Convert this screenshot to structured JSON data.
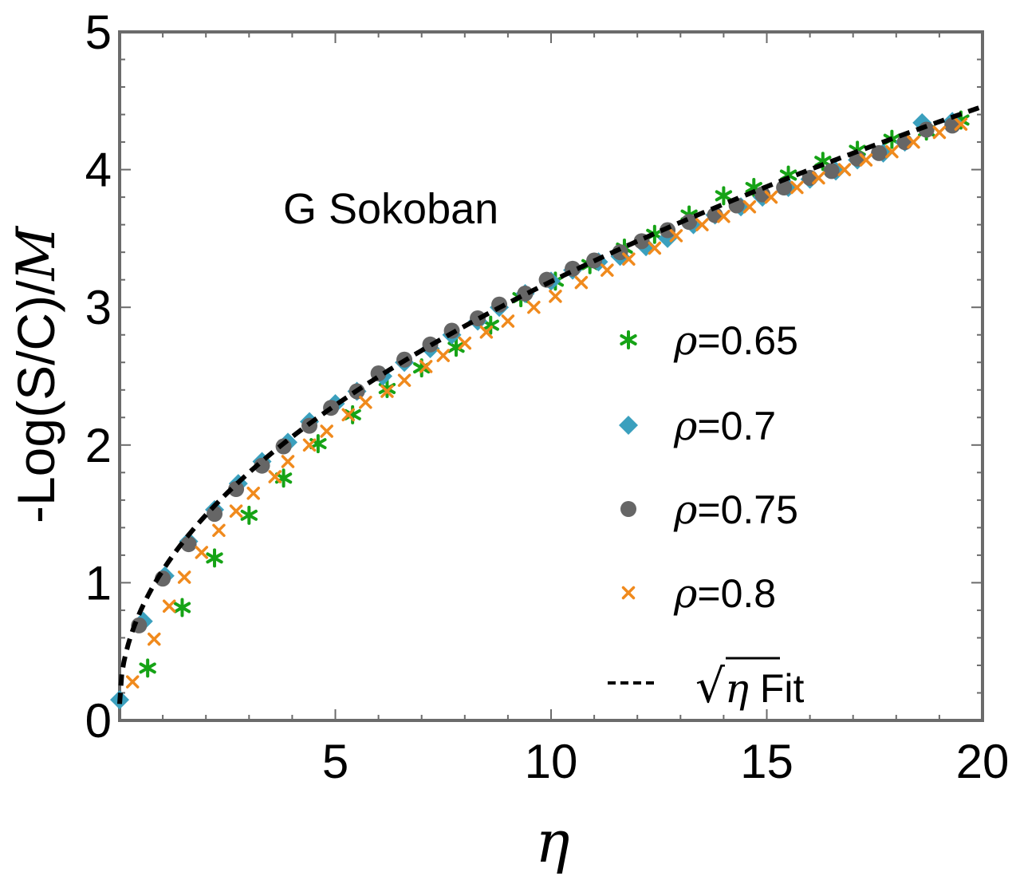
{
  "chart_data": {
    "type": "scatter",
    "title": "",
    "annotation": "G Sokoban",
    "xlabel": "η",
    "ylabel": "-Log(S/C)/M",
    "ylabel_prefix": "-Log(S/C)/",
    "ylabel_symbol": "M",
    "xlim": [
      0,
      20
    ],
    "ylim": [
      0,
      5
    ],
    "xticks": [
      5,
      10,
      15,
      20
    ],
    "yticks": [
      0,
      1,
      2,
      3,
      4,
      5
    ],
    "xtick_labels": [
      "5",
      "10",
      "15",
      "20"
    ],
    "ytick_labels": [
      "0",
      "1",
      "2",
      "3",
      "4",
      "5"
    ],
    "legend_position": "right",
    "series": [
      {
        "name": "ρ=0.65",
        "rho_symbol": "ρ",
        "rho_value": "=0.65",
        "marker": "star",
        "color": "#16a316",
        "x": [
          0.65,
          1.45,
          2.2,
          3.0,
          3.8,
          4.6,
          5.4,
          6.2,
          7.0,
          7.8,
          8.6,
          9.3,
          10.1,
          10.9,
          11.7,
          12.4,
          13.2,
          14.0,
          14.7,
          15.5,
          16.3,
          17.1,
          17.9,
          18.7,
          19.5
        ],
        "y": [
          0.38,
          0.82,
          1.18,
          1.49,
          1.76,
          2.01,
          2.22,
          2.41,
          2.56,
          2.71,
          2.87,
          3.07,
          3.19,
          3.31,
          3.43,
          3.53,
          3.67,
          3.81,
          3.87,
          3.96,
          4.06,
          4.14,
          4.22,
          4.28,
          4.36
        ]
      },
      {
        "name": "ρ=0.7",
        "rho_symbol": "ρ",
        "rho_value": "=0.7",
        "marker": "diamond",
        "color": "#3ba0be",
        "x": [
          0.0,
          0.55,
          1.05,
          1.6,
          2.2,
          2.75,
          3.3,
          3.9,
          4.4,
          5.0,
          5.5,
          6.1,
          6.6,
          7.2,
          7.7,
          8.3,
          8.8,
          9.4,
          10.0,
          10.5,
          11.1,
          11.6,
          12.2,
          12.7,
          13.3,
          13.8,
          14.4,
          14.9,
          15.5,
          16.0,
          16.6,
          17.1,
          17.7,
          18.2,
          18.6,
          19.3
        ],
        "y": [
          0.15,
          0.72,
          1.05,
          1.3,
          1.53,
          1.72,
          1.88,
          2.02,
          2.17,
          2.3,
          2.39,
          2.5,
          2.6,
          2.7,
          2.8,
          2.9,
          3.0,
          3.1,
          3.19,
          3.27,
          3.33,
          3.37,
          3.44,
          3.5,
          3.6,
          3.67,
          3.73,
          3.8,
          3.87,
          3.93,
          3.99,
          4.07,
          4.12,
          4.2,
          4.34,
          4.35
        ]
      },
      {
        "name": "ρ=0.75",
        "rho_symbol": "ρ",
        "rho_value": "=0.75",
        "marker": "circle",
        "color": "#666666",
        "x": [
          0.45,
          1.0,
          1.6,
          2.2,
          2.7,
          3.3,
          3.8,
          4.4,
          4.9,
          5.5,
          6.0,
          6.6,
          7.2,
          7.7,
          8.3,
          8.8,
          9.4,
          9.9,
          10.5,
          11.0,
          11.6,
          12.1,
          12.7,
          13.2,
          13.8,
          14.3,
          14.9,
          15.4,
          16.0,
          16.5,
          17.1,
          17.6,
          18.2,
          18.7,
          19.3
        ],
        "y": [
          0.69,
          1.03,
          1.28,
          1.5,
          1.68,
          1.85,
          1.99,
          2.14,
          2.27,
          2.39,
          2.52,
          2.62,
          2.73,
          2.83,
          2.92,
          3.02,
          3.1,
          3.2,
          3.28,
          3.34,
          3.4,
          3.48,
          3.56,
          3.62,
          3.67,
          3.74,
          3.82,
          3.87,
          3.94,
          3.99,
          4.08,
          4.12,
          4.2,
          4.29,
          4.32
        ]
      },
      {
        "name": "ρ=0.8",
        "rho_symbol": "ρ",
        "rho_value": "=0.8",
        "marker": "cross",
        "color": "#f08a1d",
        "x": [
          0.3,
          0.8,
          1.15,
          1.5,
          1.9,
          2.3,
          2.7,
          3.1,
          3.6,
          3.9,
          4.4,
          4.8,
          5.3,
          5.7,
          6.2,
          6.6,
          7.1,
          7.5,
          8.0,
          8.5,
          9.0,
          9.6,
          10.1,
          10.7,
          11.3,
          11.8,
          12.4,
          12.9,
          13.5,
          14.0,
          14.6,
          15.1,
          15.7,
          16.2,
          16.8,
          17.3,
          17.9,
          18.4,
          19.0,
          19.5
        ],
        "y": [
          0.28,
          0.59,
          0.83,
          1.04,
          1.22,
          1.38,
          1.52,
          1.65,
          1.77,
          1.88,
          2.0,
          2.1,
          2.22,
          2.31,
          2.39,
          2.47,
          2.57,
          2.65,
          2.74,
          2.82,
          2.9,
          3.0,
          3.08,
          3.18,
          3.27,
          3.35,
          3.43,
          3.52,
          3.6,
          3.66,
          3.73,
          3.8,
          3.87,
          3.94,
          4.0,
          4.07,
          4.13,
          4.2,
          4.27,
          4.33
        ]
      }
    ],
    "fit": {
      "name": "√η Fit",
      "sqrt_symbol": "√",
      "eta_symbol": "η",
      "label_suffix": " Fit",
      "style": "dashed",
      "color": "#000000",
      "model": "a*sqrt(x)+b",
      "a": 0.97,
      "b": 0.12
    }
  }
}
